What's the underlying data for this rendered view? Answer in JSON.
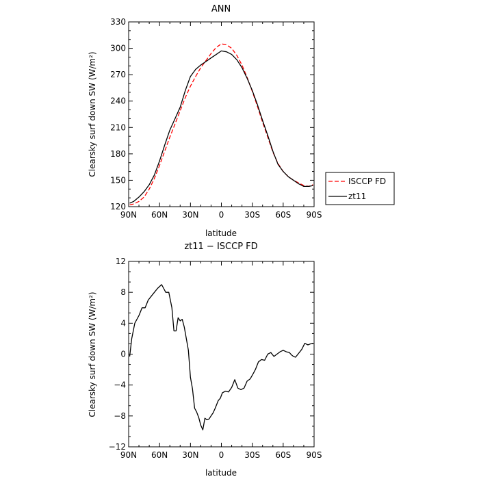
{
  "chart_data": [
    {
      "type": "line",
      "title": "ANN",
      "xlabel": "latitude",
      "ylabel": "Clearsky surf down SW (W/m²)",
      "xlim": [
        90,
        -90
      ],
      "ylim": [
        120,
        330
      ],
      "x_tick_values": [
        90,
        60,
        30,
        0,
        -30,
        -60,
        -90
      ],
      "x_tick_labels": [
        "90N",
        "60N",
        "30N",
        "0",
        "30S",
        "60S",
        "90S"
      ],
      "y_ticks": [
        120,
        150,
        180,
        210,
        240,
        270,
        300,
        330
      ],
      "grid": false,
      "legend_position": "right",
      "series": [
        {
          "name": "ISCCP FD",
          "color": "#ff0000",
          "dashed": true,
          "x": [
            89,
            85,
            80,
            75,
            70,
            65,
            60,
            55,
            50,
            45,
            40,
            35,
            30,
            25,
            20,
            15,
            10,
            5,
            0,
            -5,
            -10,
            -15,
            -20,
            -25,
            -30,
            -35,
            -40,
            -45,
            -50,
            -55,
            -60,
            -65,
            -70,
            -75,
            -80,
            -85,
            -89
          ],
          "y": [
            122,
            123,
            126,
            131,
            140,
            152,
            167,
            183,
            199,
            214,
            229,
            244,
            257,
            268,
            278,
            286,
            294,
            301,
            305,
            304,
            300,
            292,
            281,
            267,
            251,
            234,
            216,
            199,
            182,
            169,
            160,
            154,
            150,
            147,
            144,
            143,
            145
          ]
        },
        {
          "name": "zt11",
          "color": "#000000",
          "dashed": false,
          "x": [
            89,
            85,
            80,
            75,
            70,
            65,
            60,
            55,
            50,
            45,
            40,
            35,
            30,
            25,
            20,
            15,
            10,
            5,
            0,
            -5,
            -10,
            -15,
            -20,
            -25,
            -30,
            -35,
            -40,
            -45,
            -50,
            -55,
            -60,
            -65,
            -70,
            -75,
            -80,
            -85,
            -89
          ],
          "y": [
            124,
            126,
            131,
            137,
            145,
            156,
            172,
            190,
            207,
            220,
            233,
            252,
            268,
            276,
            281,
            285,
            289,
            293,
            297,
            296,
            293,
            287,
            278,
            266,
            252,
            236,
            218,
            201,
            183,
            168,
            160,
            154,
            150,
            146,
            143,
            143,
            144
          ]
        }
      ]
    },
    {
      "type": "line",
      "title": "zt11 − ISCCP FD",
      "xlabel": "latitude",
      "ylabel": "Clearsky surf down SW (W/m²)",
      "xlim": [
        90,
        -90
      ],
      "ylim": [
        -12,
        12
      ],
      "x_tick_values": [
        90,
        60,
        30,
        0,
        -30,
        -60,
        -90
      ],
      "x_tick_labels": [
        "90N",
        "60N",
        "30N",
        "0",
        "30S",
        "60S",
        "90S"
      ],
      "y_ticks": [
        -12,
        -8,
        -4,
        0,
        4,
        8,
        12
      ],
      "grid": false,
      "series": [
        {
          "color": "#000000",
          "x": [
            89,
            87,
            84,
            80,
            77,
            74,
            71,
            68,
            65,
            62,
            58,
            56,
            54,
            51,
            48,
            46,
            44,
            42,
            40,
            38,
            36,
            34,
            32,
            30,
            28,
            26,
            24,
            22,
            20,
            18,
            16,
            14,
            12,
            10,
            8,
            6,
            3,
            1,
            -1,
            -4,
            -7,
            -10,
            -13,
            -16,
            -19,
            -22,
            -25,
            -28,
            -31,
            -33,
            -36,
            -39,
            -42,
            -45,
            -48,
            -51,
            -54,
            -57,
            -60,
            -63,
            -66,
            -68,
            -70,
            -72,
            -75,
            -78,
            -81,
            -84,
            -86,
            -89
          ],
          "y": [
            -0.3,
            2,
            4,
            5,
            6,
            6,
            7,
            7.5,
            8,
            8.5,
            9,
            8.5,
            8,
            8,
            6,
            3,
            3,
            4.7,
            4.3,
            4.5,
            3.5,
            2,
            0.5,
            -3,
            -4.5,
            -7,
            -7.5,
            -8.2,
            -9.2,
            -9.8,
            -8.3,
            -8.5,
            -8.4,
            -8,
            -7.6,
            -7,
            -6,
            -5.7,
            -5,
            -4.8,
            -4.9,
            -4.3,
            -3.3,
            -4.4,
            -4.6,
            -4.4,
            -3.5,
            -3.2,
            -2.5,
            -2,
            -1,
            -0.7,
            -0.8,
            0,
            0.2,
            -0.3,
            0,
            0.3,
            0.5,
            0.3,
            0.2,
            -0.1,
            -0.3,
            -0.4,
            0.1,
            0.6,
            1.4,
            1.2,
            1.3,
            1.4
          ]
        }
      ]
    }
  ]
}
